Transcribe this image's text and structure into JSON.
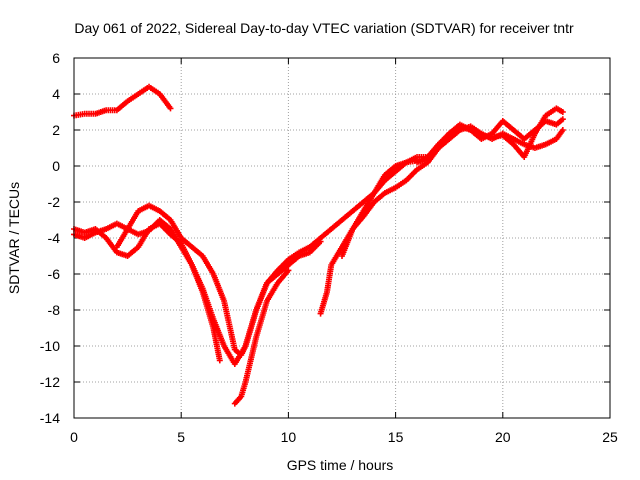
{
  "chart_data": {
    "type": "scatter",
    "title": "Day 061 of 2022, Sidereal Day-to-day VTEC variation (SDTVAR) for receiver tntr",
    "xlabel": "GPS time / hours",
    "ylabel": "SDTVAR / TECUs",
    "xlim": [
      0,
      25
    ],
    "ylim": [
      -14,
      6
    ],
    "xticks": [
      "0",
      "5",
      "10",
      "15",
      "20",
      "25"
    ],
    "yticks": [
      "6",
      "4",
      "2",
      "0",
      "-2",
      "-4",
      "-6",
      "-8",
      "-10",
      "-12",
      "-14"
    ],
    "grid": true,
    "color": "#ff0000",
    "series": [
      {
        "points": [
          [
            0.0,
            2.8
          ],
          [
            0.5,
            2.9
          ],
          [
            1.0,
            2.9
          ],
          [
            1.5,
            3.1
          ],
          [
            2.0,
            3.1
          ],
          [
            2.5,
            3.6
          ],
          [
            3.0,
            4.0
          ],
          [
            3.5,
            4.4
          ],
          [
            4.0,
            4.0
          ],
          [
            4.5,
            3.2
          ]
        ]
      },
      {
        "points": [
          [
            0.0,
            -3.5
          ],
          [
            0.5,
            -3.7
          ],
          [
            1.0,
            -3.5
          ],
          [
            1.5,
            -4.0
          ],
          [
            2.0,
            -4.8
          ],
          [
            2.5,
            -5.0
          ],
          [
            3.0,
            -4.5
          ],
          [
            3.5,
            -3.5
          ],
          [
            4.0,
            -3.2
          ],
          [
            4.5,
            -3.8
          ],
          [
            5.0,
            -4.3
          ],
          [
            5.5,
            -5.5
          ],
          [
            6.0,
            -6.8
          ],
          [
            6.5,
            -8.5
          ],
          [
            7.0,
            -10.0
          ],
          [
            7.5,
            -11.0
          ],
          [
            8.0,
            -10.0
          ],
          [
            8.5,
            -8.0
          ],
          [
            9.0,
            -6.5
          ],
          [
            9.5,
            -5.8
          ],
          [
            10.0,
            -5.2
          ],
          [
            10.5,
            -4.8
          ],
          [
            11.0,
            -4.5
          ],
          [
            11.5,
            -4.0
          ],
          [
            12.0,
            -3.5
          ],
          [
            12.5,
            -3.0
          ],
          [
            13.0,
            -2.5
          ],
          [
            13.5,
            -2.0
          ],
          [
            14.0,
            -1.5
          ],
          [
            14.5,
            -0.8
          ],
          [
            15.0,
            -0.3
          ],
          [
            15.5,
            0.2
          ],
          [
            16.0,
            0.3
          ]
        ]
      },
      {
        "points": [
          [
            0.0,
            -3.8
          ],
          [
            0.5,
            -4.0
          ],
          [
            1.0,
            -3.7
          ],
          [
            1.5,
            -3.5
          ],
          [
            2.0,
            -3.2
          ],
          [
            2.5,
            -3.5
          ],
          [
            3.0,
            -3.8
          ],
          [
            3.5,
            -3.6
          ],
          [
            4.0,
            -3.0
          ],
          [
            4.5,
            -3.5
          ],
          [
            5.0,
            -4.5
          ],
          [
            5.5,
            -5.5
          ],
          [
            6.0,
            -7.0
          ],
          [
            6.5,
            -9.0
          ],
          [
            6.8,
            -10.8
          ]
        ]
      },
      {
        "points": [
          [
            2.0,
            -4.5
          ],
          [
            2.5,
            -3.5
          ],
          [
            3.0,
            -2.5
          ],
          [
            3.5,
            -2.2
          ],
          [
            4.0,
            -2.5
          ],
          [
            4.5,
            -3.0
          ],
          [
            5.0,
            -4.0
          ],
          [
            5.5,
            -4.5
          ],
          [
            6.0,
            -5.0
          ],
          [
            6.5,
            -6.0
          ],
          [
            7.0,
            -7.5
          ],
          [
            7.5,
            -10.2
          ],
          [
            7.8,
            -10.5
          ],
          [
            8.0,
            -10.0
          ],
          [
            8.5,
            -8.0
          ],
          [
            9.0,
            -6.5
          ],
          [
            9.5,
            -6.0
          ],
          [
            10.0,
            -5.5
          ],
          [
            10.5,
            -5.0
          ],
          [
            11.0,
            -4.8
          ],
          [
            11.5,
            -4.2
          ]
        ]
      },
      {
        "points": [
          [
            7.5,
            -13.2
          ],
          [
            7.8,
            -12.8
          ],
          [
            8.0,
            -12.0
          ],
          [
            8.3,
            -10.5
          ],
          [
            8.5,
            -9.5
          ],
          [
            9.0,
            -7.5
          ],
          [
            9.5,
            -6.5
          ],
          [
            10.0,
            -5.8
          ]
        ]
      },
      {
        "points": [
          [
            11.5,
            -8.2
          ],
          [
            11.8,
            -7.0
          ],
          [
            12.0,
            -5.5
          ],
          [
            12.5,
            -4.5
          ],
          [
            13.0,
            -3.5
          ],
          [
            13.5,
            -2.8
          ],
          [
            14.0,
            -2.0
          ],
          [
            14.5,
            -1.5
          ],
          [
            15.0,
            -1.2
          ],
          [
            15.5,
            -0.8
          ],
          [
            16.0,
            -0.2
          ],
          [
            16.5,
            0.2
          ],
          [
            17.0,
            1.0
          ],
          [
            17.5,
            1.5
          ],
          [
            18.0,
            2.0
          ],
          [
            18.5,
            2.2
          ],
          [
            19.0,
            1.8
          ],
          [
            19.5,
            1.5
          ],
          [
            20.0,
            1.8
          ],
          [
            20.5,
            1.5
          ],
          [
            21.0,
            1.2
          ],
          [
            21.5,
            1.0
          ],
          [
            22.0,
            1.2
          ],
          [
            22.5,
            1.5
          ],
          [
            22.8,
            2.0
          ]
        ]
      },
      {
        "points": [
          [
            12.5,
            -5.0
          ],
          [
            13.0,
            -3.5
          ],
          [
            13.5,
            -2.5
          ],
          [
            14.0,
            -1.5
          ],
          [
            14.5,
            -0.5
          ],
          [
            15.0,
            0.0
          ],
          [
            15.5,
            0.2
          ],
          [
            16.0,
            0.5
          ],
          [
            16.5,
            0.5
          ],
          [
            17.0,
            1.2
          ],
          [
            17.5,
            1.8
          ],
          [
            18.0,
            2.2
          ],
          [
            18.5,
            2.0
          ],
          [
            19.0,
            1.5
          ],
          [
            19.5,
            1.8
          ],
          [
            20.0,
            2.5
          ],
          [
            20.5,
            2.0
          ],
          [
            21.0,
            1.5
          ],
          [
            21.5,
            2.0
          ],
          [
            22.0,
            2.5
          ],
          [
            22.5,
            2.3
          ],
          [
            22.8,
            2.6
          ]
        ]
      },
      {
        "points": [
          [
            16.0,
            0.2
          ],
          [
            16.5,
            0.4
          ],
          [
            17.0,
            1.0
          ],
          [
            17.5,
            1.8
          ],
          [
            18.0,
            2.3
          ],
          [
            18.5,
            2.0
          ],
          [
            19.0,
            1.7
          ],
          [
            19.5,
            1.6
          ],
          [
            20.0,
            1.7
          ],
          [
            20.5,
            1.2
          ],
          [
            21.0,
            0.5
          ],
          [
            21.5,
            1.8
          ],
          [
            22.0,
            2.8
          ],
          [
            22.5,
            3.2
          ],
          [
            22.8,
            3.0
          ]
        ]
      }
    ]
  }
}
